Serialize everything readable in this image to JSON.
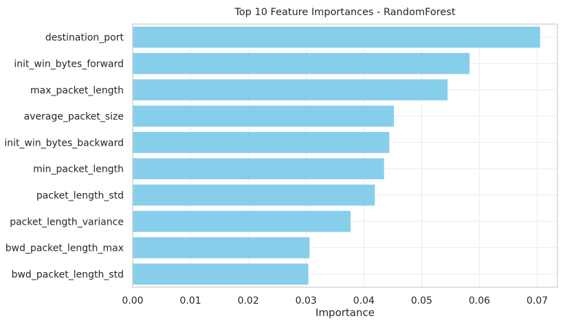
{
  "chart_data": {
    "type": "bar",
    "orientation": "horizontal",
    "title": "Top 10 Feature Importances - RandomForest",
    "xlabel": "Importance",
    "ylabel": "",
    "categories": [
      "destination_port",
      "init_win_bytes_forward",
      "max_packet_length",
      "average_packet_size",
      "init_win_bytes_backward",
      "min_packet_length",
      "packet_length_std",
      "packet_length_variance",
      "bwd_packet_length_max",
      "bwd_packet_length_std"
    ],
    "values": [
      0.0705,
      0.0583,
      0.0545,
      0.0452,
      0.0444,
      0.0435,
      0.0419,
      0.0377,
      0.0306,
      0.0304
    ],
    "xlim": [
      0,
      0.0735
    ],
    "xticks": [
      0.0,
      0.01,
      0.02,
      0.03,
      0.04,
      0.05,
      0.06,
      0.07
    ],
    "xtick_labels": [
      "0.00",
      "0.01",
      "0.02",
      "0.03",
      "0.04",
      "0.05",
      "0.06",
      "0.07"
    ],
    "grid": true,
    "bar_color": "#87ceeb"
  },
  "colors": {
    "bar": "#87ceeb",
    "grid": "#ebebeb",
    "frame": "#cccccc",
    "text": "#262626",
    "background": "#ffffff"
  }
}
